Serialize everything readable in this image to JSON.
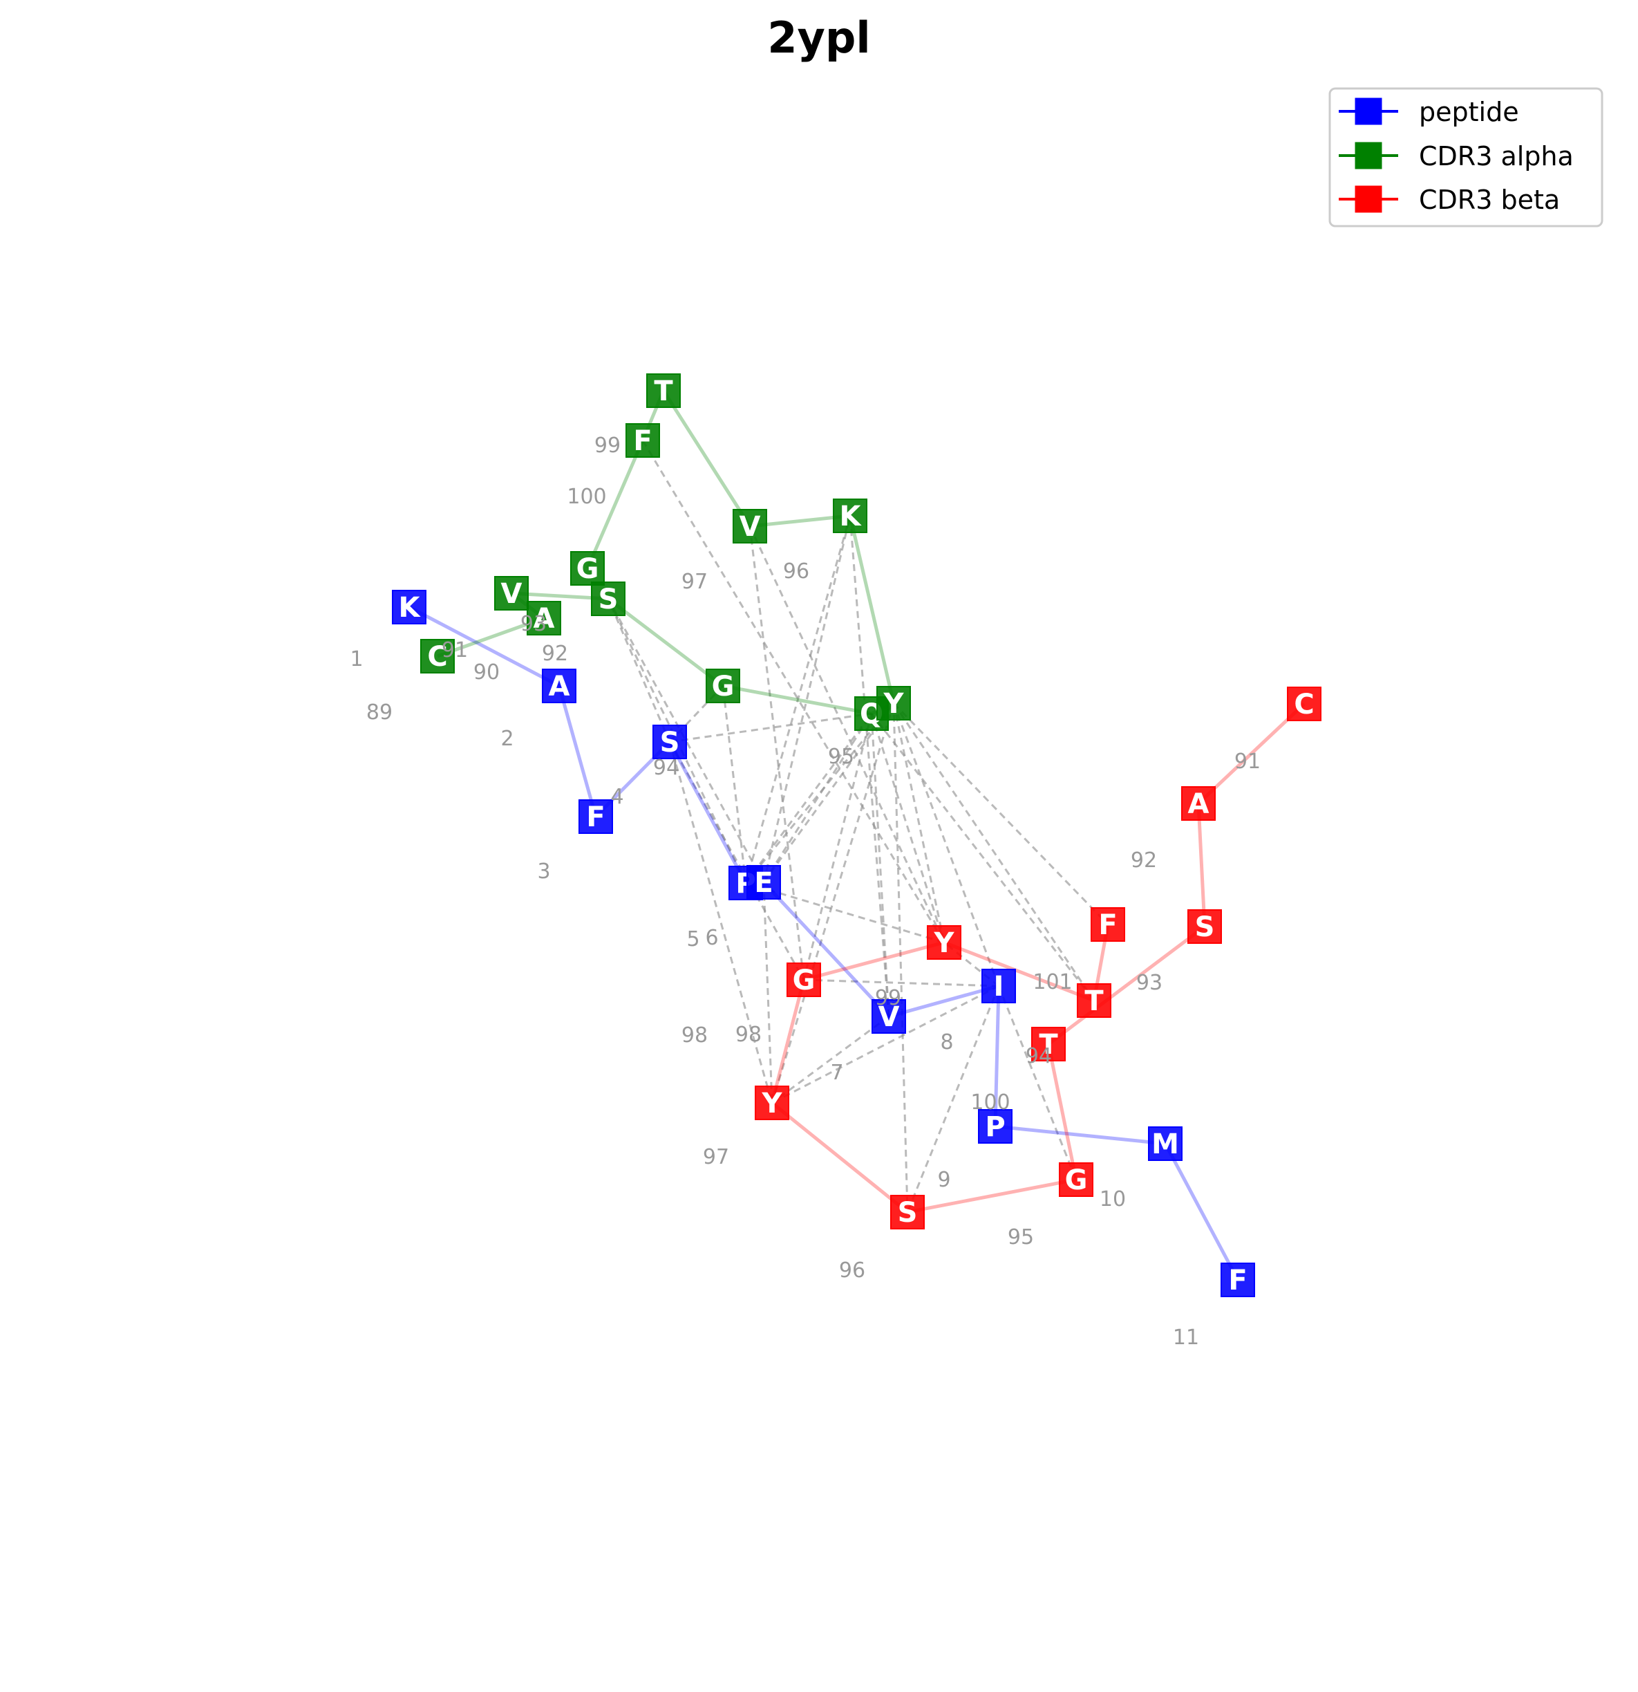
{
  "title": "2ypl",
  "legend": [
    {
      "label": "peptide",
      "color": "#0000ff"
    },
    {
      "label": "CDR3 alpha",
      "color": "#008000"
    },
    {
      "label": "CDR3 beta",
      "color": "#ff0000"
    }
  ],
  "chains": {
    "peptide": {
      "color": "#0000ff",
      "residues": [
        {
          "letter": "K",
          "index": "1"
        },
        {
          "letter": "A",
          "index": "2"
        },
        {
          "letter": "F",
          "index": "3"
        },
        {
          "letter": "S",
          "index": "4"
        },
        {
          "letter": "P",
          "index": "5"
        },
        {
          "letter": "E",
          "index": "6"
        },
        {
          "letter": "V",
          "index": "7"
        },
        {
          "letter": "I",
          "index": "8"
        },
        {
          "letter": "P",
          "index": "9"
        },
        {
          "letter": "M",
          "index": "10"
        },
        {
          "letter": "F",
          "index": "11"
        }
      ]
    },
    "cdr3_alpha": {
      "color": "#008000",
      "residues": [
        {
          "letter": "C",
          "index": "89"
        },
        {
          "letter": "A",
          "index": "90"
        },
        {
          "letter": "V",
          "index": "91"
        },
        {
          "letter": "S",
          "index": "92"
        },
        {
          "letter": "G",
          "index": "93"
        },
        {
          "letter": "Q",
          "index": "94"
        },
        {
          "letter": "Y",
          "index": "95"
        },
        {
          "letter": "K",
          "index": "96"
        },
        {
          "letter": "V",
          "index": "97"
        },
        {
          "letter": "T",
          "index": "98"
        },
        {
          "letter": "F",
          "index": "99"
        },
        {
          "letter": "G",
          "index": "100"
        }
      ]
    },
    "cdr3_beta": {
      "color": "#ff0000",
      "residues": [
        {
          "letter": "C",
          "index": "91"
        },
        {
          "letter": "A",
          "index": "92"
        },
        {
          "letter": "S",
          "index": "93"
        },
        {
          "letter": "T",
          "index": "94"
        },
        {
          "letter": "G",
          "index": "95"
        },
        {
          "letter": "S",
          "index": "96"
        },
        {
          "letter": "Y",
          "index": "97"
        },
        {
          "letter": "G",
          "index": "98"
        },
        {
          "letter": "Y",
          "index": "99"
        },
        {
          "letter": "T",
          "index": "100"
        },
        {
          "letter": "F",
          "index": "101"
        }
      ]
    }
  },
  "contacts": [
    [
      "peptide",
      3,
      "cdr3_alpha",
      3
    ],
    [
      "peptide",
      3,
      "cdr3_alpha",
      4
    ],
    [
      "peptide",
      3,
      "cdr3_alpha",
      5
    ],
    [
      "peptide",
      4,
      "cdr3_alpha",
      3
    ],
    [
      "peptide",
      4,
      "cdr3_alpha",
      4
    ],
    [
      "peptide",
      4,
      "cdr3_alpha",
      5
    ],
    [
      "peptide",
      4,
      "cdr3_alpha",
      6
    ],
    [
      "peptide",
      4,
      "cdr3_alpha",
      7
    ],
    [
      "peptide",
      5,
      "cdr3_alpha",
      3
    ],
    [
      "peptide",
      5,
      "cdr3_alpha",
      5
    ],
    [
      "peptide",
      5,
      "cdr3_alpha",
      6
    ],
    [
      "peptide",
      5,
      "cdr3_alpha",
      7
    ],
    [
      "peptide",
      5,
      "cdr3_beta",
      6
    ],
    [
      "peptide",
      6,
      "cdr3_beta",
      6
    ],
    [
      "peptide",
      6,
      "cdr3_alpha",
      5
    ],
    [
      "peptide",
      6,
      "cdr3_alpha",
      7
    ],
    [
      "peptide",
      7,
      "cdr3_beta",
      4
    ],
    [
      "peptide",
      7,
      "cdr3_beta",
      5
    ],
    [
      "peptide",
      7,
      "cdr3_beta",
      6
    ],
    [
      "peptide",
      7,
      "cdr3_beta",
      7
    ],
    [
      "peptide",
      7,
      "cdr3_beta",
      8
    ],
    [
      "peptide",
      4,
      "cdr3_beta",
      8
    ],
    [
      "peptide",
      3,
      "cdr3_beta",
      6
    ],
    [
      "peptide",
      3,
      "cdr3_beta",
      7
    ],
    [
      "cdr3_alpha",
      8,
      "cdr3_beta",
      7
    ],
    [
      "cdr3_alpha",
      8,
      "cdr3_beta",
      8
    ],
    [
      "cdr3_alpha",
      10,
      "cdr3_beta",
      8
    ],
    [
      "cdr3_alpha",
      5,
      "cdr3_beta",
      7
    ],
    [
      "cdr3_alpha",
      5,
      "cdr3_beta",
      8
    ],
    [
      "cdr3_alpha",
      5,
      "cdr3_beta",
      9
    ],
    [
      "cdr3_alpha",
      6,
      "cdr3_beta",
      8
    ],
    [
      "cdr3_alpha",
      6,
      "cdr3_beta",
      9
    ],
    [
      "cdr3_alpha",
      6,
      "cdr3_beta",
      10
    ],
    [
      "cdr3_alpha",
      6,
      "cdr3_beta",
      5
    ],
    [
      "cdr3_alpha",
      6,
      "cdr3_beta",
      6
    ],
    [
      "cdr3_alpha",
      6,
      "peptide",
      7
    ]
  ]
}
